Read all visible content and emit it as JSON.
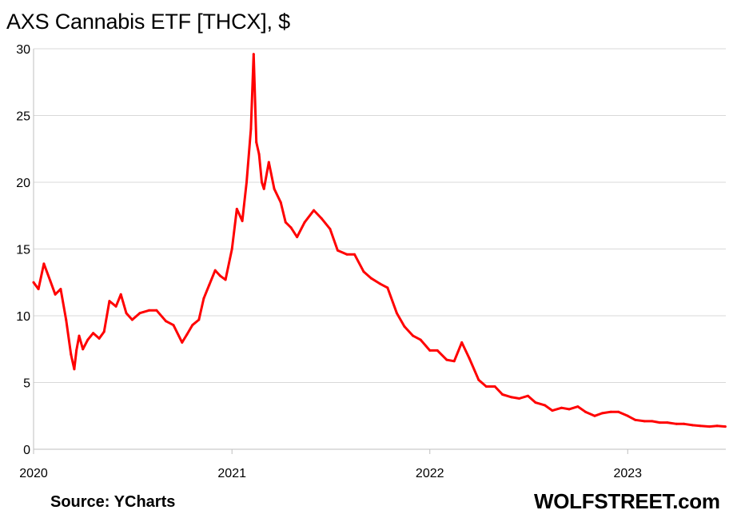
{
  "chart_data": {
    "type": "line",
    "title": "AXS Cannabis ETF [THCX], $",
    "xlabel": "",
    "ylabel": "",
    "ylim": [
      0,
      30
    ],
    "yticks": [
      0,
      5,
      10,
      15,
      20,
      25,
      30
    ],
    "xticks": [
      "2020",
      "2021",
      "2022",
      "2023"
    ],
    "xlim": [
      "2020-01-01",
      "2023-07-01"
    ],
    "grid": true,
    "legend": false,
    "line_color": "#ff0000",
    "series": [
      {
        "x": [
          "2020-01-01",
          "2020-01-10",
          "2020-01-20",
          "2020-02-01",
          "2020-02-10",
          "2020-02-20",
          "2020-03-01",
          "2020-03-10",
          "2020-03-16",
          "2020-03-20",
          "2020-03-25",
          "2020-04-01",
          "2020-04-10",
          "2020-04-20",
          "2020-05-01",
          "2020-05-10",
          "2020-05-20",
          "2020-06-01",
          "2020-06-10",
          "2020-06-20",
          "2020-07-01",
          "2020-07-15",
          "2020-08-01",
          "2020-08-15",
          "2020-09-01",
          "2020-09-15",
          "2020-10-01",
          "2020-10-10",
          "2020-10-20",
          "2020-11-01",
          "2020-11-10",
          "2020-11-20",
          "2020-12-01",
          "2020-12-10",
          "2020-12-20",
          "2021-01-01",
          "2021-01-10",
          "2021-01-20",
          "2021-01-28",
          "2021-02-05",
          "2021-02-10",
          "2021-02-15",
          "2021-02-20",
          "2021-02-25",
          "2021-03-01",
          "2021-03-10",
          "2021-03-20",
          "2021-04-01",
          "2021-04-10",
          "2021-04-20",
          "2021-05-01",
          "2021-05-15",
          "2021-06-01",
          "2021-06-15",
          "2021-07-01",
          "2021-07-15",
          "2021-08-01",
          "2021-08-15",
          "2021-09-01",
          "2021-09-15",
          "2021-10-01",
          "2021-10-15",
          "2021-11-01",
          "2021-11-15",
          "2021-12-01",
          "2021-12-15",
          "2022-01-01",
          "2022-01-15",
          "2022-02-01",
          "2022-02-15",
          "2022-03-01",
          "2022-03-15",
          "2022-04-01",
          "2022-04-15",
          "2022-05-01",
          "2022-05-15",
          "2022-06-01",
          "2022-06-15",
          "2022-07-01",
          "2022-07-15",
          "2022-08-01",
          "2022-08-15",
          "2022-09-01",
          "2022-09-15",
          "2022-10-01",
          "2022-10-15",
          "2022-11-01",
          "2022-11-15",
          "2022-12-01",
          "2022-12-15",
          "2023-01-01",
          "2023-01-15",
          "2023-02-01",
          "2023-02-15",
          "2023-03-01",
          "2023-03-15",
          "2023-04-01",
          "2023-04-15",
          "2023-05-01",
          "2023-05-15",
          "2023-06-01",
          "2023-06-15",
          "2023-06-30"
        ],
        "values": [
          12.5,
          12.0,
          13.9,
          12.6,
          11.6,
          12.0,
          9.7,
          7.1,
          6.0,
          7.4,
          8.5,
          7.5,
          8.2,
          8.7,
          8.3,
          8.8,
          11.1,
          10.7,
          11.6,
          10.2,
          9.7,
          10.2,
          10.4,
          10.4,
          9.6,
          9.3,
          8.0,
          8.6,
          9.3,
          9.7,
          11.3,
          12.3,
          13.4,
          13.0,
          12.7,
          15.0,
          18.0,
          17.1,
          20.0,
          24.0,
          29.6,
          23.0,
          22.1,
          20.0,
          19.5,
          21.5,
          19.5,
          18.5,
          17.0,
          16.6,
          15.9,
          17.0,
          17.9,
          17.3,
          16.5,
          14.9,
          14.6,
          14.6,
          13.3,
          12.8,
          12.4,
          12.1,
          10.2,
          9.2,
          8.5,
          8.2,
          7.4,
          7.4,
          6.7,
          6.6,
          8.0,
          6.8,
          5.2,
          4.7,
          4.7,
          4.1,
          3.9,
          3.8,
          4.0,
          3.5,
          3.3,
          2.9,
          3.1,
          3.0,
          3.2,
          2.8,
          2.5,
          2.7,
          2.8,
          2.8,
          2.5,
          2.2,
          2.1,
          2.1,
          2.0,
          2.0,
          1.9,
          1.9,
          1.8,
          1.75,
          1.7,
          1.75,
          1.7
        ]
      }
    ]
  },
  "source_note": "Source: YCharts",
  "watermark": "WOLFSTREET.com"
}
